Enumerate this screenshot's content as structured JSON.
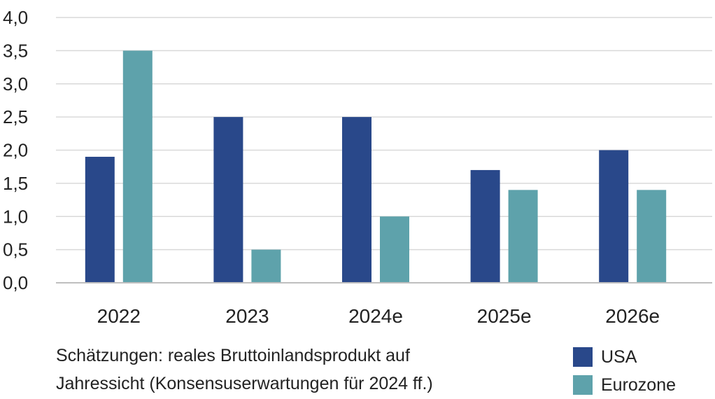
{
  "caption": {
    "line1": "Schätzungen: reales Bruttoinlandsprodukt auf",
    "line2": "Jahressicht (Konsensuserwartungen für 2024 ff.)"
  },
  "chart_data": {
    "type": "bar",
    "categories": [
      "2022",
      "2023",
      "2024e",
      "2025e",
      "2026e"
    ],
    "series": [
      {
        "name": "USA",
        "color": "#29488a",
        "values": [
          1.9,
          2.5,
          2.5,
          1.7,
          2.0
        ]
      },
      {
        "name": "Eurozone",
        "color": "#5ea2ab",
        "values": [
          3.5,
          0.5,
          1.0,
          1.4,
          1.4
        ]
      }
    ],
    "ylim": [
      0,
      4
    ],
    "yticks": [
      "0,0",
      "0,5",
      "1,0",
      "1,5",
      "2,0",
      "2,5",
      "3,0",
      "3,5",
      "4,0"
    ],
    "grid": true,
    "legend": "bottom-right"
  }
}
